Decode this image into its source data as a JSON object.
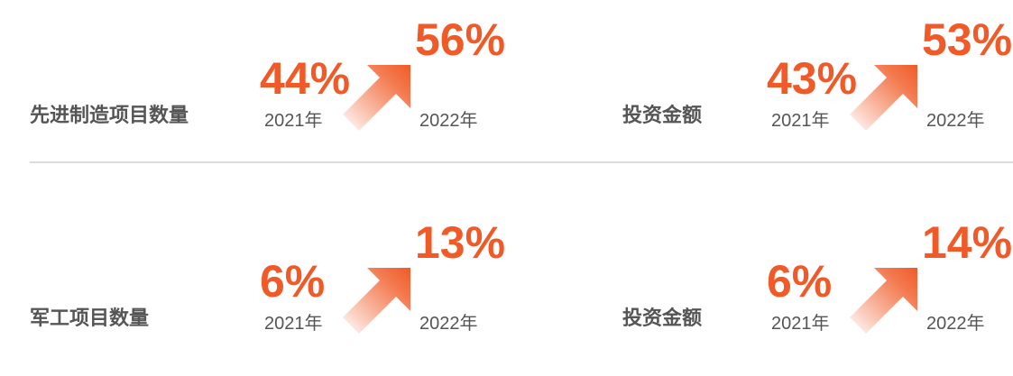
{
  "blocks": [
    {
      "label": "先进制造项目数量",
      "from_value": "44%",
      "from_year": "2021年",
      "to_value": "56%",
      "to_year": "2022年"
    },
    {
      "label": "投资金额",
      "from_value": "43%",
      "from_year": "2021年",
      "to_value": "53%",
      "to_year": "2022年"
    },
    {
      "label": "军工项目数量",
      "from_value": "6%",
      "from_year": "2021年",
      "to_value": "13%",
      "to_year": "2022年"
    },
    {
      "label": "投资金额",
      "from_value": "6%",
      "from_year": "2021年",
      "to_value": "14%",
      "to_year": "2022年"
    }
  ]
}
